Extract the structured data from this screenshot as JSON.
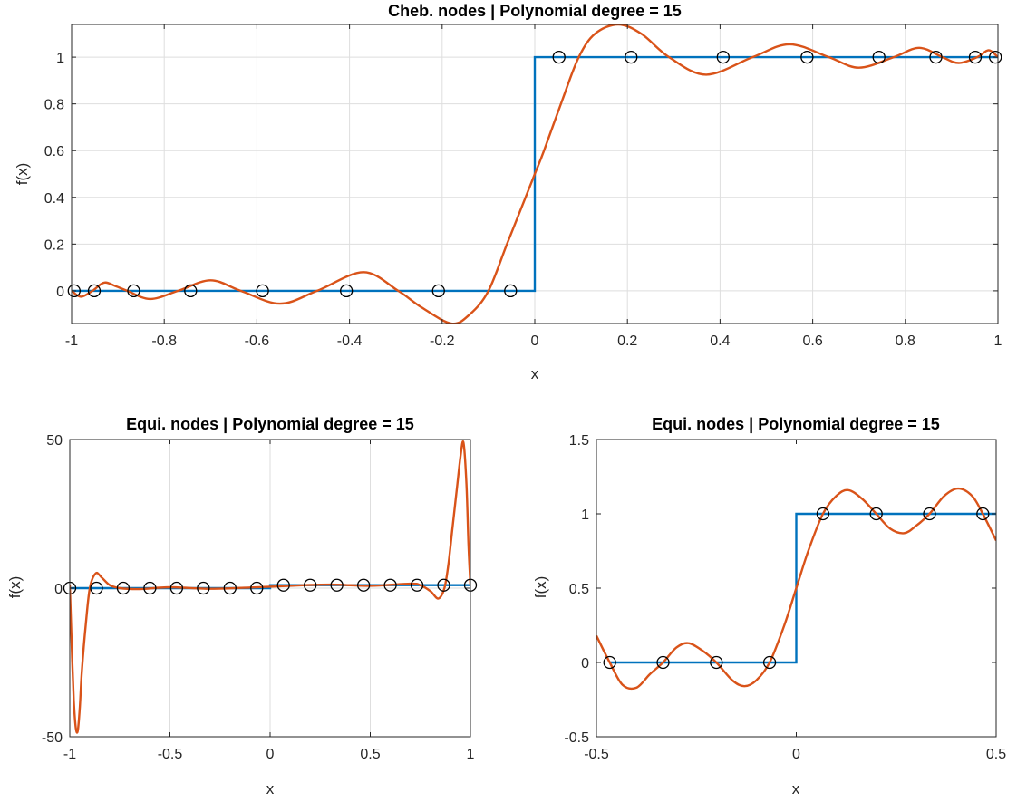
{
  "chart_data": [
    {
      "type": "line",
      "title": "Cheb. nodes | Polynomial degree = 15",
      "xlabel": "x",
      "ylabel": "f(x)",
      "xlim": [
        -1,
        1
      ],
      "ylim": [
        -0.14,
        1.14
      ],
      "xticks": [
        -1,
        -0.8,
        -0.6,
        -0.4,
        -0.2,
        0,
        0.2,
        0.4,
        0.6,
        0.8,
        1
      ],
      "xtick_labels": [
        "-1",
        "-0.8",
        "-0.6",
        "-0.4",
        "-0.2",
        "0",
        "0.2",
        "0.4",
        "0.6",
        "0.8",
        "1"
      ],
      "yticks": [
        0,
        0.2,
        0.4,
        0.6,
        0.8,
        1
      ],
      "ytick_labels": [
        "0",
        "0.2",
        "0.4",
        "0.6",
        "0.8",
        "1"
      ],
      "grid": true,
      "series": [
        {
          "kind": "step",
          "color": "#0072BD",
          "x": [
            -1,
            0,
            0,
            1
          ],
          "y": [
            0,
            0,
            1,
            1
          ]
        },
        {
          "kind": "curve",
          "color": "#D95319",
          "x": [
            -1,
            -0.98,
            -0.955,
            -0.93,
            -0.905,
            -0.88,
            -0.83,
            -0.77,
            -0.7,
            -0.635,
            -0.55,
            -0.47,
            -0.37,
            -0.295,
            -0.245,
            -0.18,
            -0.14,
            -0.1,
            -0.06,
            -0.02,
            0,
            0.02,
            0.06,
            0.095,
            0.13,
            0.18,
            0.23,
            0.29,
            0.37,
            0.47,
            0.55,
            0.635,
            0.7,
            0.775,
            0.83,
            0.88,
            0.915,
            0.955,
            0.98,
            1
          ],
          "y": [
            0,
            -0.025,
            0,
            0.035,
            0.02,
            0,
            -0.035,
            0,
            0.045,
            0,
            -0.055,
            0,
            0.08,
            0,
            -0.07,
            -0.14,
            -0.1,
            0,
            0.2,
            0.4,
            0.5,
            0.6,
            0.82,
            1,
            1.1,
            1.14,
            1.1,
            1,
            0.925,
            1,
            1.055,
            1,
            0.955,
            1,
            1.04,
            1,
            0.975,
            1,
            1.03,
            1
          ]
        },
        {
          "kind": "markers",
          "color": "#000000",
          "x": [
            -0.9945,
            -0.9511,
            -0.866,
            -0.7431,
            -0.5878,
            -0.4067,
            -0.2079,
            -0.0523,
            0.0523,
            0.2079,
            0.4067,
            0.5878,
            0.7431,
            0.866,
            0.9511,
            0.9945
          ],
          "y": [
            0,
            0,
            0,
            0,
            0,
            0,
            0,
            0,
            1,
            1,
            1,
            1,
            1,
            1,
            1,
            1
          ]
        }
      ]
    },
    {
      "type": "line",
      "title": "Equi. nodes | Polynomial degree = 15",
      "xlabel": "x",
      "ylabel": "f(x)",
      "xlim": [
        -1,
        1
      ],
      "ylim": [
        -50,
        50
      ],
      "xticks": [
        -1,
        -0.5,
        0,
        0.5,
        1
      ],
      "xtick_labels": [
        "-1",
        "-0.5",
        "0",
        "0.5",
        "1"
      ],
      "yticks": [
        -50,
        0,
        50
      ],
      "ytick_labels": [
        "-50",
        "0",
        "50"
      ],
      "grid": true,
      "series": [
        {
          "kind": "step",
          "color": "#0072BD",
          "x": [
            -1,
            0,
            0,
            1
          ],
          "y": [
            0,
            0,
            1,
            1
          ]
        },
        {
          "kind": "curve",
          "color": "#D95319",
          "x": [
            -1,
            -0.99,
            -0.98,
            -0.97,
            -0.96,
            -0.95,
            -0.94,
            -0.92,
            -0.9,
            -0.87,
            -0.84,
            -0.8,
            -0.75,
            -0.65,
            -0.5,
            -0.3,
            -0.1,
            0,
            0.1,
            0.3,
            0.5,
            0.7,
            0.75,
            0.8,
            0.84,
            0.87,
            0.89,
            0.91,
            0.93,
            0.95,
            0.965,
            0.98,
            0.99,
            1
          ],
          "y": [
            1,
            -20,
            -38,
            -47,
            -48,
            -40,
            -28,
            -12,
            0,
            5,
            3.5,
            1,
            0,
            -0.3,
            0.3,
            -0.2,
            0.2,
            0.5,
            0.8,
            1.2,
            0.8,
            1.5,
            1,
            -1,
            -3.5,
            0,
            8,
            20,
            32,
            44,
            49,
            35,
            15,
            1
          ]
        },
        {
          "kind": "markers",
          "color": "#000000",
          "x": [
            -1,
            -0.8667,
            -0.7333,
            -0.6,
            -0.4667,
            -0.3333,
            -0.2,
            -0.0667,
            0.0667,
            0.2,
            0.3333,
            0.4667,
            0.6,
            0.7333,
            0.8667,
            1
          ],
          "y": [
            0,
            0,
            0,
            0,
            0,
            0,
            0,
            0,
            1,
            1,
            1,
            1,
            1,
            1,
            1,
            1
          ]
        }
      ]
    },
    {
      "type": "line",
      "title": "Equi. nodes | Polynomial degree = 15",
      "xlabel": "x",
      "ylabel": "f(x)",
      "xlim": [
        -0.5,
        0.5
      ],
      "ylim": [
        -0.5,
        1.5
      ],
      "xticks": [
        -0.5,
        0,
        0.5
      ],
      "xtick_labels": [
        "-0.5",
        "0",
        "0.5"
      ],
      "yticks": [
        -0.5,
        0,
        0.5,
        1,
        1.5
      ],
      "ytick_labels": [
        "-0.5",
        "0",
        "0.5",
        "1",
        "1.5"
      ],
      "grid": false,
      "series": [
        {
          "kind": "step",
          "color": "#0072BD",
          "x": [
            -0.4667,
            0,
            0,
            0.5
          ],
          "y": [
            0,
            0,
            1,
            1
          ]
        },
        {
          "kind": "curve",
          "color": "#D95319",
          "x": [
            -0.5,
            -0.4667,
            -0.435,
            -0.4,
            -0.3667,
            -0.3333,
            -0.3,
            -0.27,
            -0.235,
            -0.2,
            -0.16,
            -0.13,
            -0.1,
            -0.0667,
            -0.03,
            0,
            0.03,
            0.0667,
            0.1,
            0.13,
            0.165,
            0.2,
            0.235,
            0.27,
            0.3,
            0.3333,
            0.37,
            0.405,
            0.44,
            0.4667,
            0.5
          ],
          "y": [
            0.18,
            0,
            -0.15,
            -0.17,
            -0.08,
            0,
            0.1,
            0.13,
            0.08,
            0,
            -0.12,
            -0.16,
            -0.12,
            0,
            0.25,
            0.5,
            0.75,
            1,
            1.12,
            1.16,
            1.1,
            1,
            0.9,
            0.87,
            0.92,
            1,
            1.12,
            1.17,
            1.12,
            1,
            0.82
          ]
        },
        {
          "kind": "markers",
          "color": "#000000",
          "x": [
            -0.4667,
            -0.3333,
            -0.2,
            -0.0667,
            0.0667,
            0.2,
            0.3333,
            0.4667
          ],
          "y": [
            0,
            0,
            0,
            0,
            1,
            1,
            1,
            1
          ]
        }
      ]
    }
  ]
}
